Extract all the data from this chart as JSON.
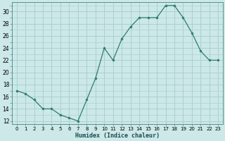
{
  "x": [
    0,
    1,
    2,
    3,
    4,
    5,
    6,
    7,
    8,
    9,
    10,
    11,
    12,
    13,
    14,
    15,
    16,
    17,
    18,
    19,
    20,
    21,
    22,
    23
  ],
  "y": [
    17,
    16.5,
    15.5,
    14,
    14,
    13,
    12.5,
    12,
    15.5,
    19,
    24,
    22,
    25.5,
    27.5,
    29,
    29,
    29,
    31,
    31,
    29,
    26.5,
    23.5,
    22,
    22
  ],
  "line_color": "#2e7d6e",
  "marker_color": "#2e7d6e",
  "bg_color": "#cce8e8",
  "grid_color": "#a8cccc",
  "xlabel": "Humidex (Indice chaleur)",
  "ylim": [
    11.5,
    31.5
  ],
  "xlim": [
    -0.5,
    23.5
  ],
  "yticks": [
    12,
    14,
    16,
    18,
    20,
    22,
    24,
    26,
    28,
    30
  ],
  "xticks": [
    0,
    1,
    2,
    3,
    4,
    5,
    6,
    7,
    8,
    9,
    10,
    11,
    12,
    13,
    14,
    15,
    16,
    17,
    18,
    19,
    20,
    21,
    22,
    23
  ]
}
